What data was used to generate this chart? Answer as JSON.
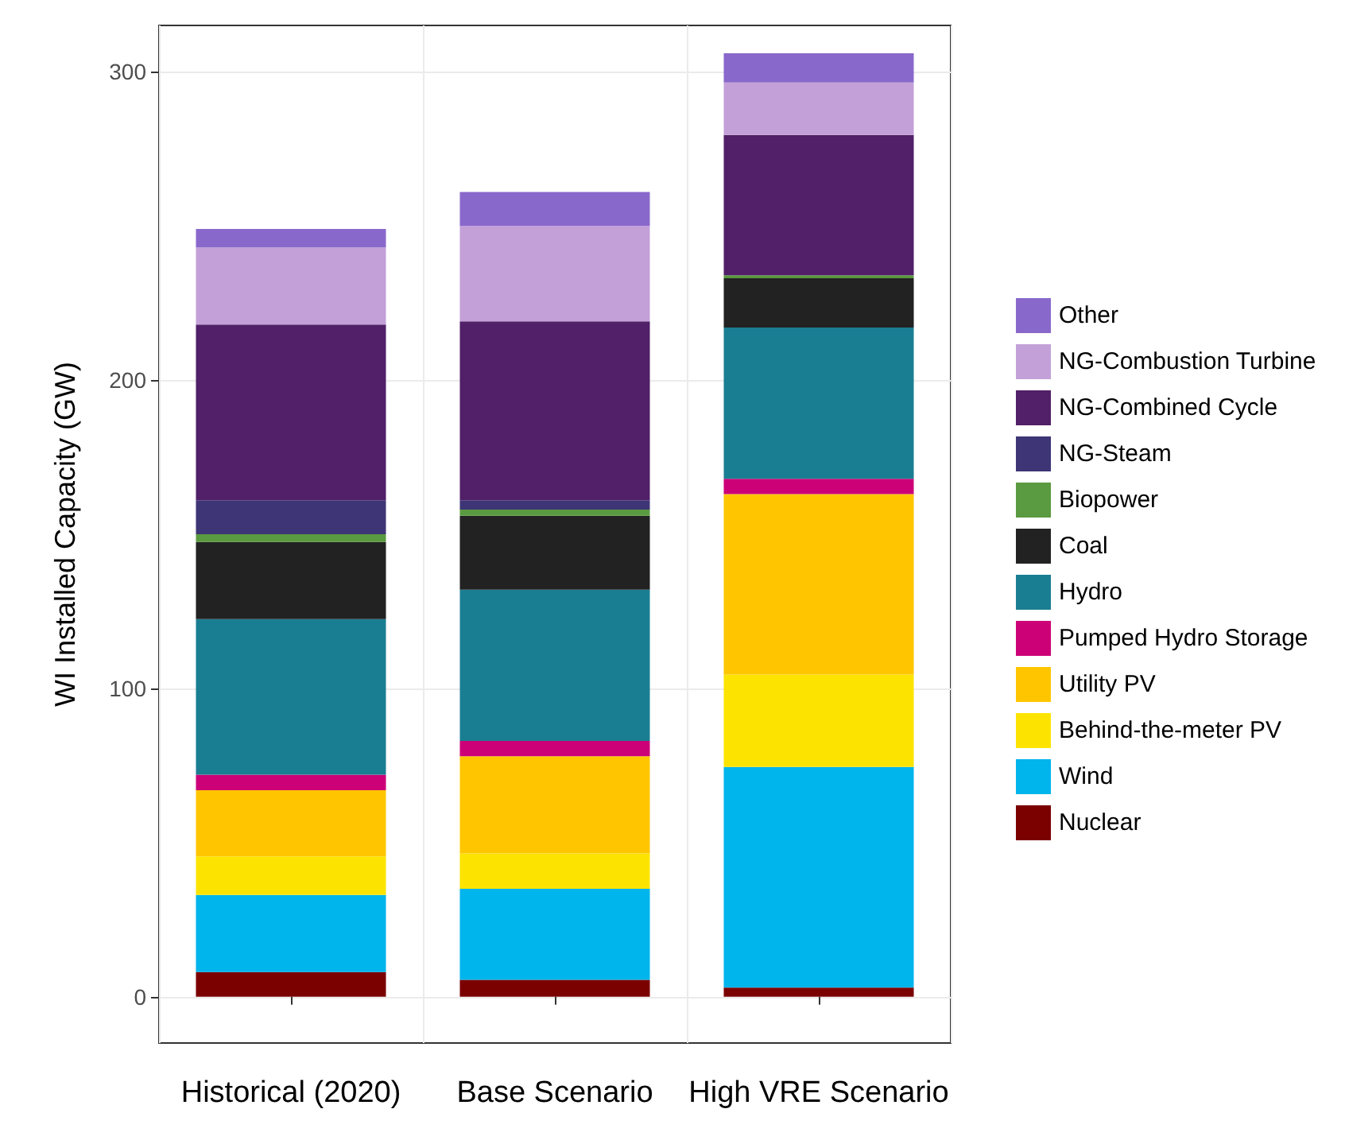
{
  "chart_data": {
    "type": "bar",
    "stacked": true,
    "ylabel": "WI Installed Capacity (GW)",
    "categories": [
      "Historical (2020)",
      "Base Scenario",
      "High VRE Scenario"
    ],
    "series": [
      {
        "name": "Nuclear",
        "color": "#7b0000",
        "values": [
          8,
          5.5,
          3
        ]
      },
      {
        "name": "Wind",
        "color": "#00b4ec",
        "values": [
          25,
          29.5,
          71.5
        ]
      },
      {
        "name": "Behind-the-meter PV",
        "color": "#fde400",
        "values": [
          12.5,
          11.5,
          30
        ]
      },
      {
        "name": "Utility PV",
        "color": "#ffc600",
        "values": [
          21.5,
          31.5,
          58.5
        ]
      },
      {
        "name": "Pumped Hydro Storage",
        "color": "#cc0077",
        "values": [
          5,
          5,
          5
        ]
      },
      {
        "name": "Hydro",
        "color": "#1a7e92",
        "values": [
          50.5,
          49,
          49
        ]
      },
      {
        "name": "Coal",
        "color": "#222222",
        "values": [
          25,
          24,
          16
        ]
      },
      {
        "name": "Biopower",
        "color": "#5a9a40",
        "values": [
          2.5,
          2,
          1
        ]
      },
      {
        "name": "NG-Steam",
        "color": "#3e3576",
        "values": [
          11,
          3,
          0
        ]
      },
      {
        "name": "NG-Combined Cycle",
        "color": "#512068",
        "values": [
          57,
          58,
          45.5
        ]
      },
      {
        "name": "NG-Combustion Turbine",
        "color": "#c3a0d8",
        "values": [
          25,
          31,
          17
        ]
      },
      {
        "name": "Other",
        "color": "#8968cb",
        "values": [
          6,
          11,
          9.5
        ]
      }
    ],
    "ylim": [
      -15,
      315
    ],
    "yticks": [
      0,
      100,
      200,
      300
    ],
    "grid": true,
    "legend": "right"
  }
}
